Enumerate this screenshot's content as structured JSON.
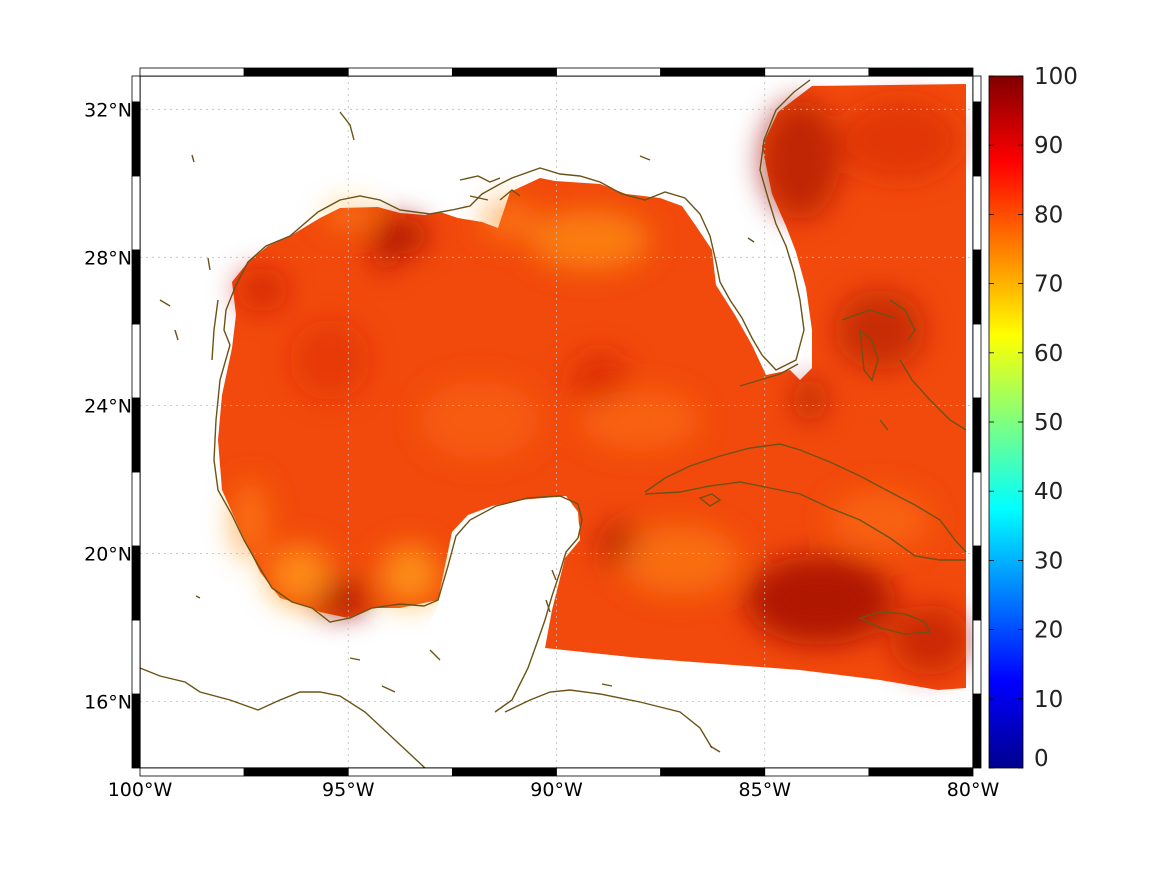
{
  "map": {
    "lon_range": [
      -100,
      -80
    ],
    "lat_range": [
      14.2,
      32.9
    ],
    "lon_ticks": [
      {
        "value": -100,
        "label": "100°W"
      },
      {
        "value": -95,
        "label": "95°W"
      },
      {
        "value": -90,
        "label": "90°W"
      },
      {
        "value": -85,
        "label": "85°W"
      },
      {
        "value": -80,
        "label": "80°W"
      }
    ],
    "lat_ticks": [
      {
        "value": 16,
        "label": "16°N"
      },
      {
        "value": 20,
        "label": "20°N"
      },
      {
        "value": 24,
        "label": "24°N"
      },
      {
        "value": 28,
        "label": "28°N"
      },
      {
        "value": 32,
        "label": "32°N"
      }
    ],
    "grid": "dotted",
    "coastline_color": "#6b5316",
    "field_colors": {
      "base": "#f24a0c",
      "high": "#a50d05",
      "low": "#ff9a16"
    }
  },
  "colorbar": {
    "min": 0,
    "max": 100,
    "ticks": [
      "0",
      "10",
      "20",
      "30",
      "40",
      "50",
      "60",
      "70",
      "80",
      "90",
      "100"
    ],
    "colormap": "jet",
    "stops": [
      "#00008f",
      "#0000ff",
      "#007fff",
      "#00ffff",
      "#7fff7f",
      "#ffff00",
      "#ff7f00",
      "#ff0000",
      "#800000"
    ]
  }
}
